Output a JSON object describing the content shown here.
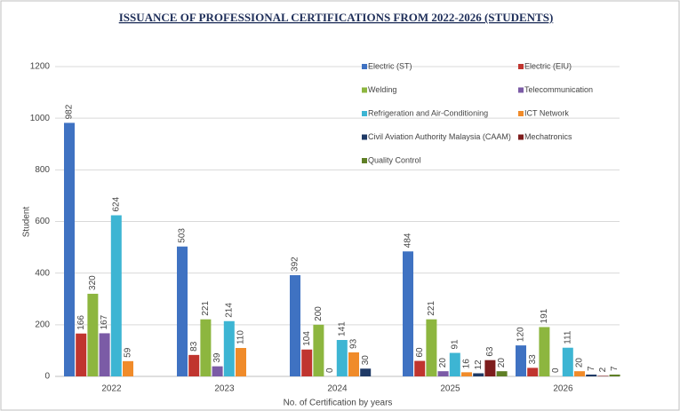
{
  "chart_data": {
    "type": "bar",
    "title": "ISSUANCE OF PROFESSIONAL CERTIFICATIONS FROM 2022-2026 (STUDENTS)",
    "x_label": "No. of Certification by years",
    "y_label": "Student",
    "categories": [
      "2022",
      "2023",
      "2024",
      "2025",
      "2026"
    ],
    "series": [
      {
        "name": "Electric (ST)",
        "color": "#3f72c2",
        "values": [
          982,
          503,
          392,
          484,
          120
        ]
      },
      {
        "name": "Electric (EIU)",
        "color": "#c0352f",
        "values": [
          166,
          83,
          104,
          60,
          33
        ]
      },
      {
        "name": "Welding",
        "color": "#8db63f",
        "values": [
          320,
          221,
          200,
          221,
          191
        ]
      },
      {
        "name": "Telecommunication",
        "color": "#7b5ba6",
        "values": [
          167,
          39,
          0,
          20,
          0
        ]
      },
      {
        "name": "Refrigeration and Air-Conditioning",
        "color": "#3db5d3",
        "values": [
          624,
          214,
          141,
          91,
          111
        ]
      },
      {
        "name": "ICT Network",
        "color": "#f08b2a",
        "values": [
          59,
          110,
          93,
          16,
          20
        ]
      },
      {
        "name": "Civil Aviation Authority Malaysia (CAAM)",
        "color": "#1f3a66",
        "values": [
          null,
          null,
          30,
          12,
          7
        ]
      },
      {
        "name": "Mechatronics",
        "color": "#7d1d1d",
        "values": [
          null,
          null,
          null,
          63,
          2
        ]
      },
      {
        "name": "Quality Control",
        "color": "#5f7f26",
        "values": [
          null,
          null,
          null,
          20,
          7
        ]
      }
    ],
    "ylim": [
      0,
      1200
    ],
    "yticks": [
      0,
      200,
      400,
      600,
      800,
      1000,
      1200
    ],
    "grid": true
  }
}
